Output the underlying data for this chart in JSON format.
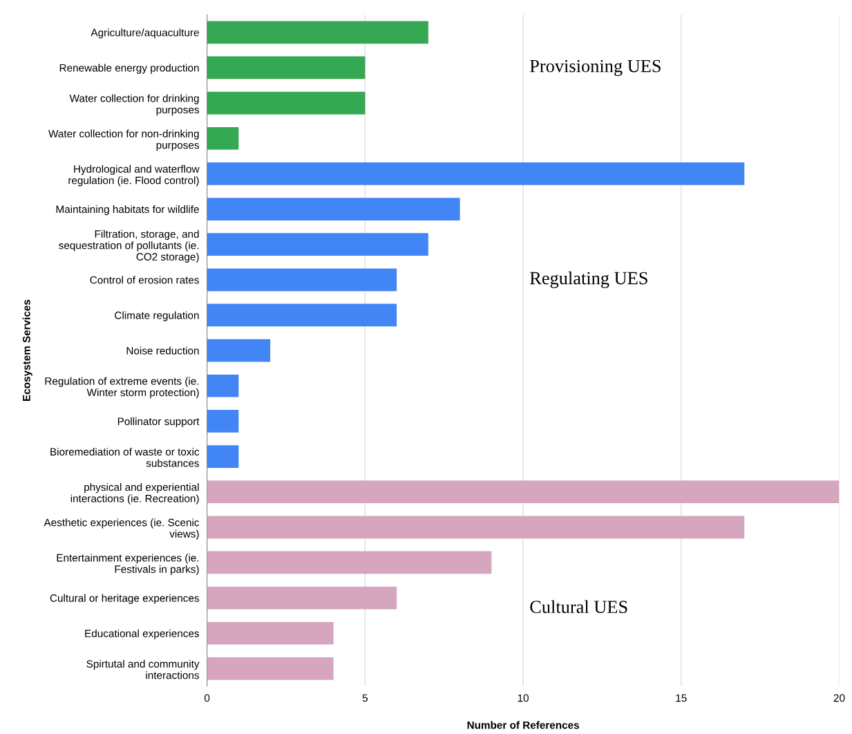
{
  "chart_data": {
    "type": "bar",
    "orientation": "horizontal",
    "xlabel": "Number of References",
    "ylabel": "Ecosystem Services",
    "categories": [
      "Agriculture/aquaculture",
      "Renewable energy production",
      "Water collection for drinking purposes",
      "Water collection for non-drinking purposes",
      "Hydrological and waterflow regulation (ie. Flood control)",
      "Maintaining habitats for wildlife",
      "Filtration, storage, and sequestration of pollutants (ie. CO2 storage)",
      "Control of erosion rates",
      "Climate regulation",
      "Noise reduction",
      "Regulation of extreme events (ie. Winter storm protection)",
      "Pollinator support",
      "Bioremediation of waste or toxic substances",
      "physical and experiential interactions (ie. Recreation)",
      "Aesthetic experiences (ie. Scenic views)",
      "Entertainment experiences (ie. Festivals in parks)",
      "Cultural or heritage experiences",
      "Educational experiences",
      "Spirtutal and community interactions"
    ],
    "values": [
      7,
      5,
      5,
      1,
      17,
      8,
      7,
      6,
      6,
      2,
      1,
      1,
      1,
      20,
      17,
      9,
      6,
      4,
      4
    ],
    "colors": [
      "#34a853",
      "#34a853",
      "#34a853",
      "#34a853",
      "#4285f4",
      "#4285f4",
      "#4285f4",
      "#4285f4",
      "#4285f4",
      "#4285f4",
      "#4285f4",
      "#4285f4",
      "#4285f4",
      "#d5a6bd",
      "#d5a6bd",
      "#d5a6bd",
      "#d5a6bd",
      "#d5a6bd",
      "#d5a6bd"
    ],
    "xlim": [
      0,
      20
    ],
    "xticks": [
      0,
      5,
      10,
      15,
      20
    ],
    "grid": "x",
    "annotations": [
      "Provisioning UES",
      "Regulating UES",
      "Cultural UES"
    ]
  }
}
